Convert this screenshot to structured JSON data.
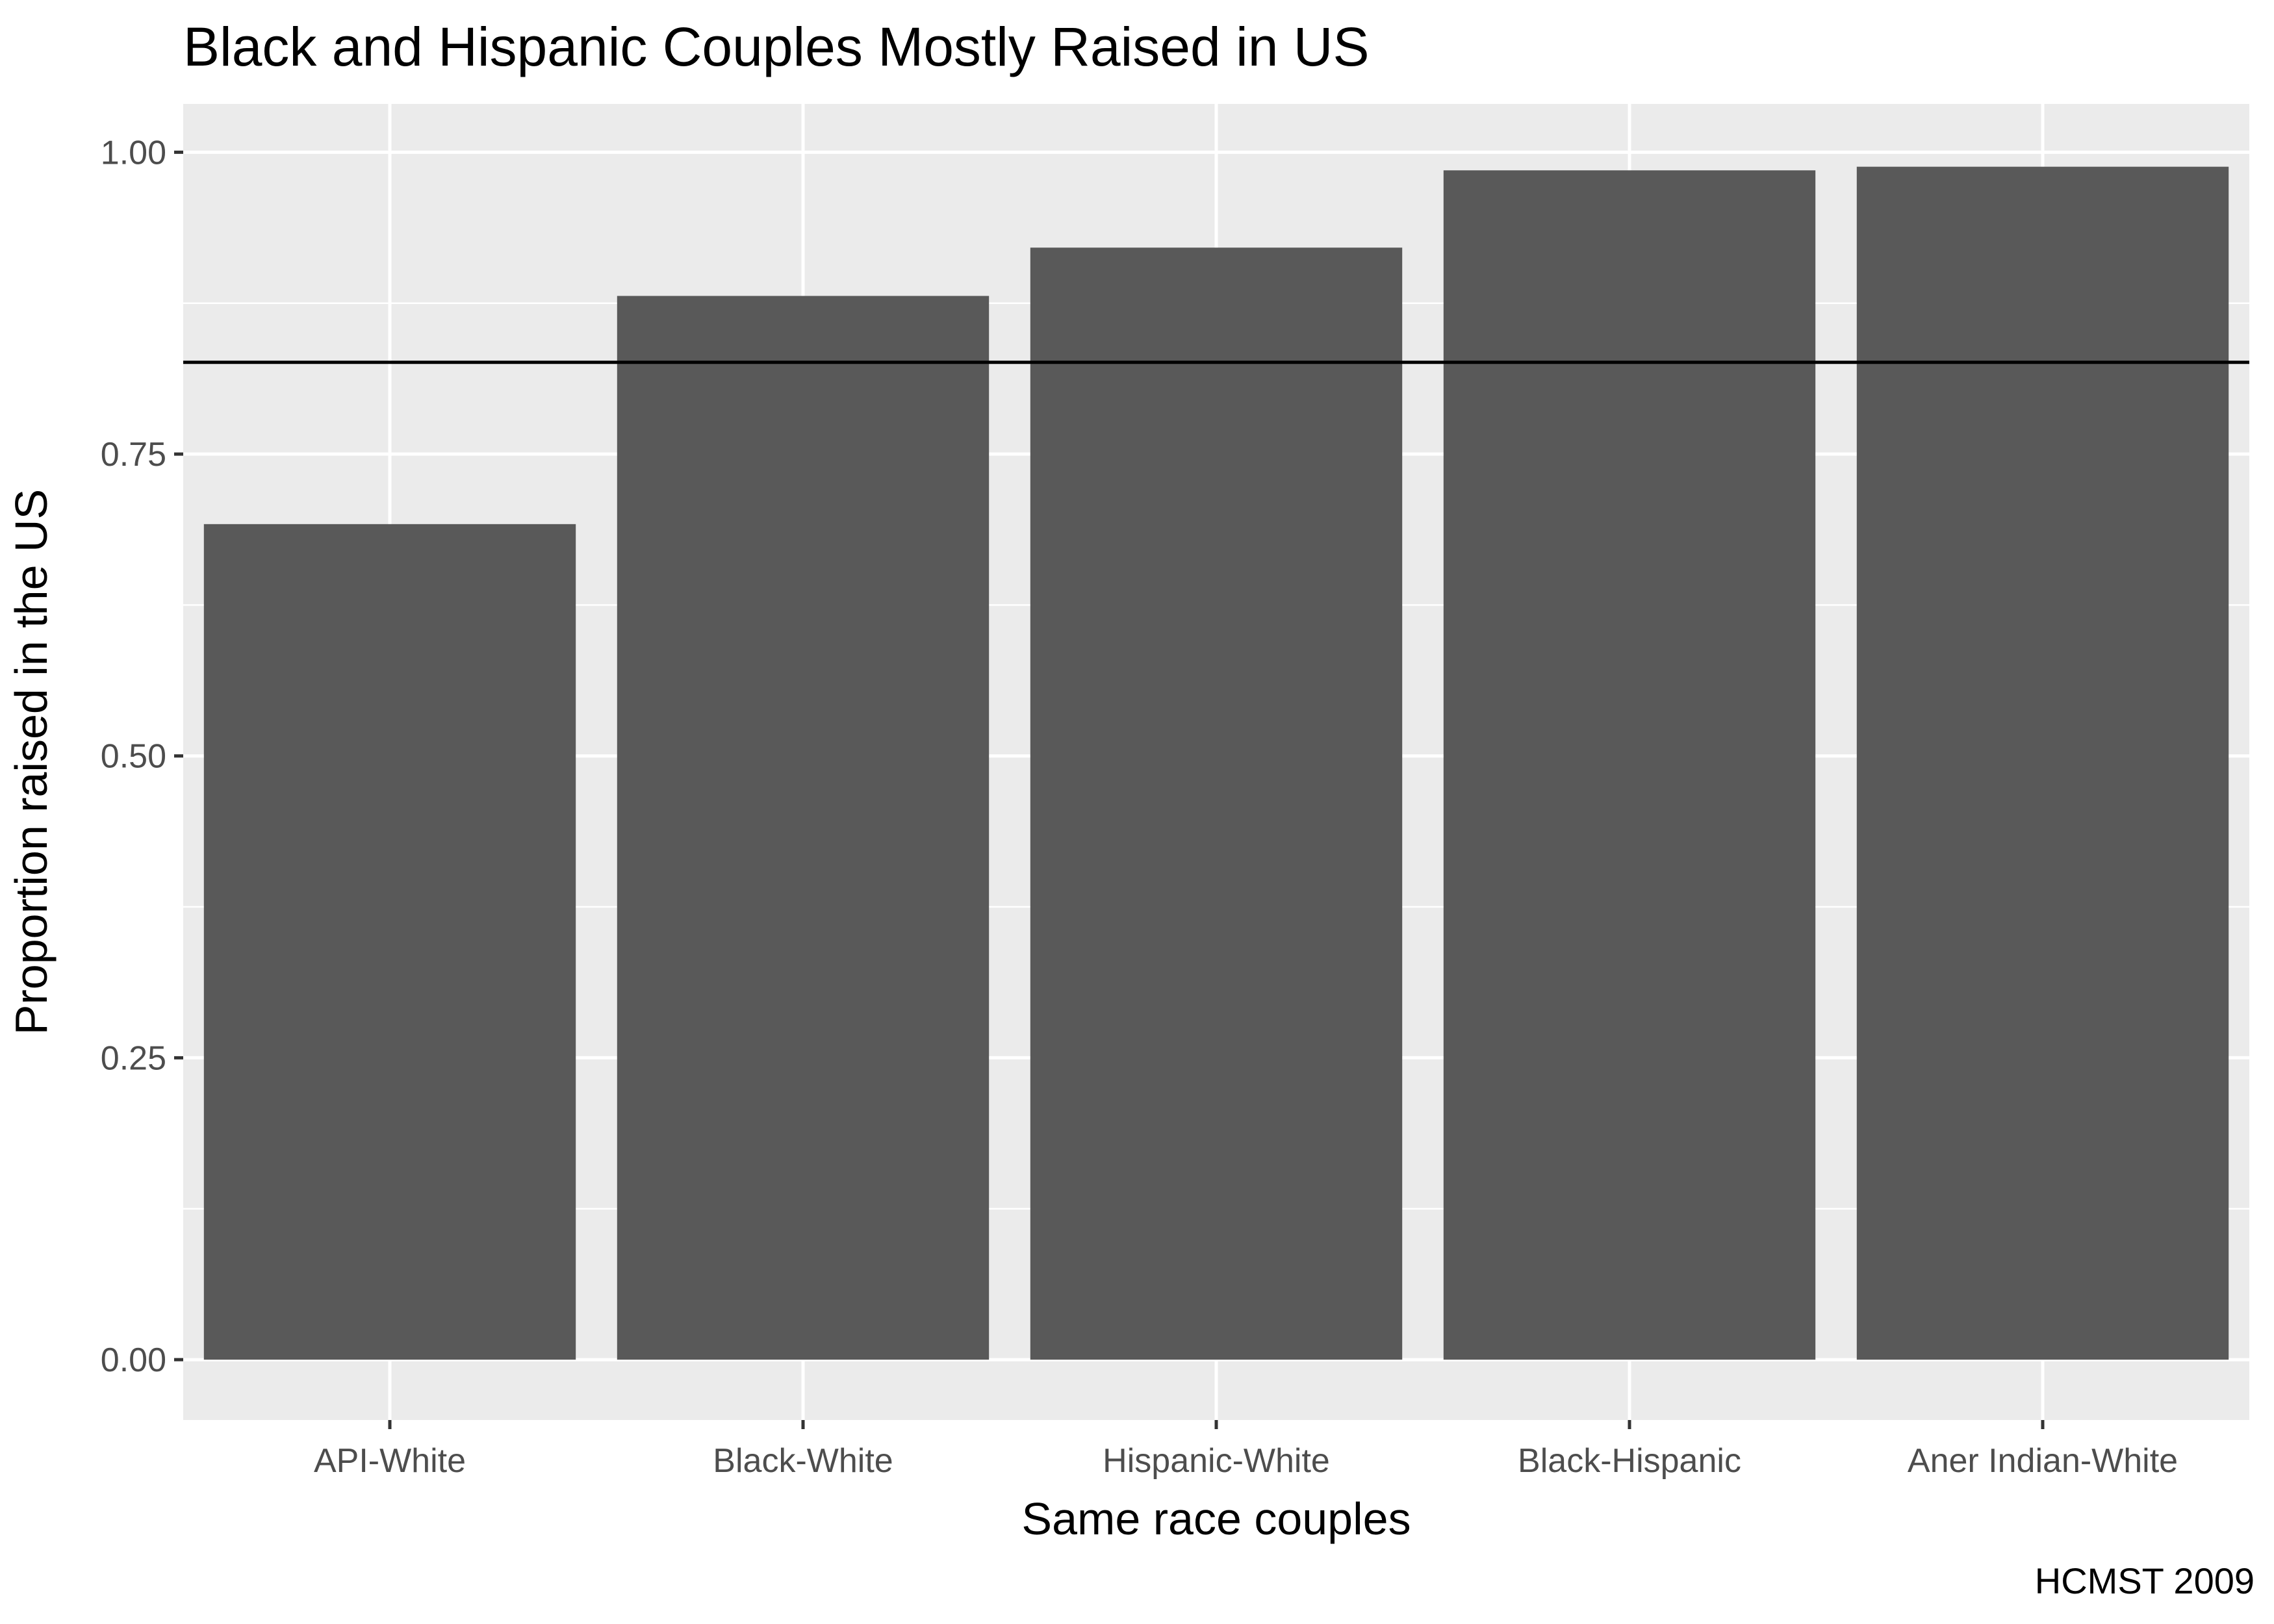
{
  "chart_data": {
    "type": "bar",
    "title": "Black and Hispanic Couples Mostly Raised in US",
    "xlabel": "Same race couples",
    "ylabel": "Proportion raised in the US",
    "caption": "HCMST 2009",
    "categories": [
      "API-White",
      "Black-White",
      "Hispanic-White",
      "Black-Hispanic",
      "Aner Indian-White"
    ],
    "values": [
      0.692,
      0.881,
      0.921,
      0.985,
      0.988
    ],
    "ylim": [
      -0.05,
      1.04
    ],
    "y_ticks": [
      0.0,
      0.25,
      0.5,
      0.75,
      1.0
    ],
    "y_tick_labels": [
      "0.00",
      "0.25",
      "0.50",
      "0.75",
      "1.00"
    ],
    "reference_line": 0.826,
    "grid": true,
    "colors": {
      "bar": "#595959",
      "panel_background": "#ebebeb",
      "grid": "#ffffff",
      "reference_line": "#000000"
    }
  }
}
